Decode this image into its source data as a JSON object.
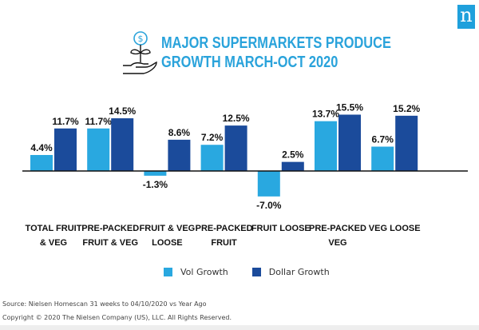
{
  "brand": {
    "logo_letter": "n",
    "logo_color": "#1fa0dc"
  },
  "title": {
    "line1": "MAJOR SUPERMARKETS PRODUCE",
    "line2": "GROWTH MARCH-OCT 2020",
    "icon": "money-plant-in-hand-icon"
  },
  "chart_data": {
    "type": "bar",
    "title": "MAJOR SUPERMARKETS PRODUCE GROWTH MARCH-OCT 2020",
    "xlabel": "",
    "ylabel": "",
    "categories": [
      [
        "TOTAL FRUIT",
        "& VEG"
      ],
      [
        "PRE-PACKED",
        "FRUIT & VEG"
      ],
      [
        "FRUIT & VEG",
        "LOOSE"
      ],
      [
        "PRE-PACKED",
        "FRUIT"
      ],
      [
        "FRUIT LOOSE"
      ],
      [
        "PRE-PACKED",
        "VEG"
      ],
      [
        "VEG LOOSE"
      ]
    ],
    "series": [
      {
        "name": "Vol Growth",
        "color": "#29a8e0",
        "values": [
          4.4,
          11.7,
          -1.3,
          7.2,
          -7.0,
          13.7,
          6.7
        ],
        "labels": [
          "4.4%",
          "11.7%",
          "-1.3%",
          "7.2%",
          "-7.0%",
          "13.7%",
          "6.7%"
        ]
      },
      {
        "name": "Dollar Growth",
        "color": "#1b4b9b",
        "values": [
          11.7,
          14.5,
          8.6,
          12.5,
          2.5,
          15.5,
          15.2
        ],
        "labels": [
          "11.7%",
          "14.5%",
          "8.6%",
          "12.5%",
          "2.5%",
          "15.5%",
          "15.2%"
        ]
      }
    ],
    "ylim": [
      -8,
      16
    ],
    "grid": false,
    "baseline": 0,
    "legend_position": "bottom-center"
  },
  "legend": [
    {
      "label": "Vol Growth",
      "color": "#29a8e0"
    },
    {
      "label": "Dollar Growth",
      "color": "#1b4b9b"
    }
  ],
  "footer": {
    "source": "Source: Nielsen Homescan 31 weeks to 04/10/2020 vs Year Ago",
    "copyright": "Copyright © 2020 The Nielsen Company (US), LLC. All Rights Reserved."
  }
}
